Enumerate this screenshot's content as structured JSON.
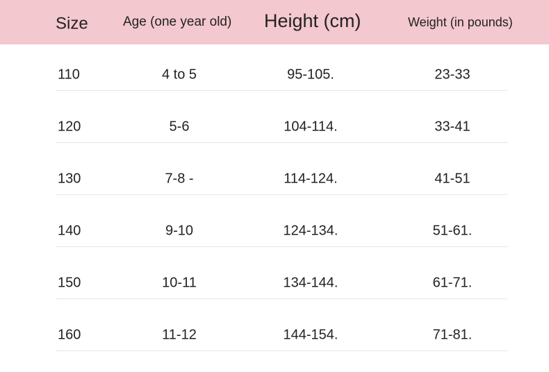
{
  "table": {
    "header": [
      "Size",
      "Age (one year old)",
      "Height (cm)",
      "Weight (in pounds)"
    ],
    "rows": [
      [
        "110",
        "4 to 5",
        "95-105.",
        "23-33"
      ],
      [
        "120",
        "5-6",
        "104-114.",
        "33-41"
      ],
      [
        "130",
        "7-8 -",
        "114-124.",
        "41-51"
      ],
      [
        "140",
        "9-10",
        "124-134.",
        "51-61."
      ],
      [
        "150",
        "10-11",
        "134-144.",
        "61-71."
      ],
      [
        "160",
        "11-12",
        "144-154.",
        "71-81."
      ]
    ]
  }
}
